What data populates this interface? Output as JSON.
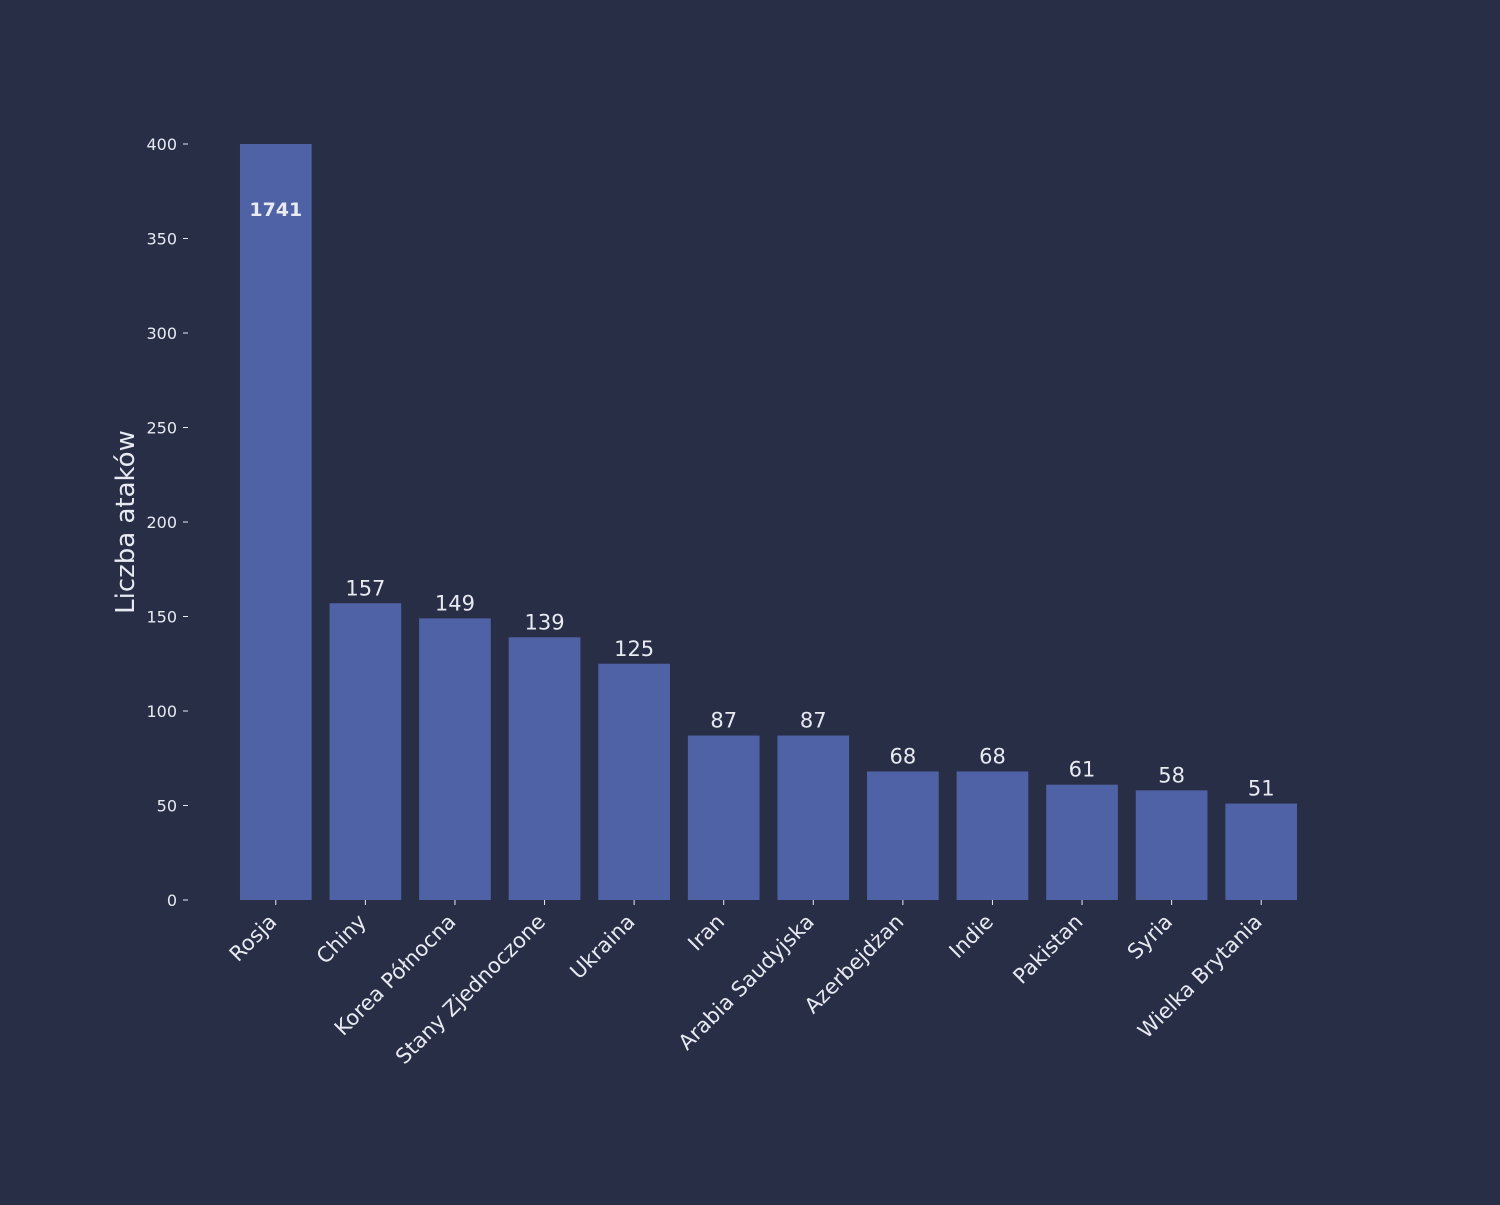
{
  "chart_data": {
    "type": "bar",
    "title": "",
    "xlabel": "",
    "ylabel": "Liczba ataków",
    "ylim": [
      0,
      400
    ],
    "yticks": [
      0,
      50,
      100,
      150,
      200,
      250,
      300,
      350,
      400
    ],
    "grid": false,
    "categories": [
      "Rosja",
      "Chiny",
      "Korea Północna",
      "Stany Zjednoczone",
      "Ukraina",
      "Iran",
      "Arabia Saudyjska",
      "Azerbejdżan",
      "Indie",
      "Pakistan",
      "Syria",
      "Wielka Brytania"
    ],
    "values": [
      1741,
      157,
      149,
      139,
      125,
      87,
      87,
      68,
      68,
      61,
      58,
      51
    ],
    "data_labels": [
      "1741",
      "157",
      "149",
      "139",
      "125",
      "87",
      "87",
      "68",
      "68",
      "61",
      "58",
      "51"
    ],
    "clipped_bars": [
      "Rosja"
    ]
  },
  "colors": {
    "background": "#292e47",
    "bar": "#5062a6",
    "text": "#e8eaf2",
    "tick": "#e8eaf2"
  }
}
